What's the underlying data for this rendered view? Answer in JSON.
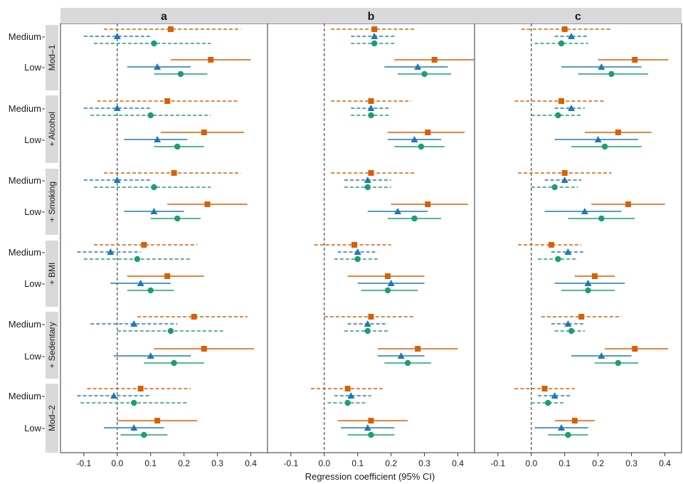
{
  "chart_data": {
    "type": "forest",
    "xlabel": "Regression coefficient (95% CI)",
    "xlim": [
      -0.17,
      0.45
    ],
    "xticks": [
      -0.1,
      0,
      0.1,
      0.2,
      0.3,
      0.4
    ],
    "xtick_labels": [
      "-0.1",
      "0.0",
      "0.1",
      "0.2",
      "0.3",
      "0.4"
    ],
    "reference_line": 0,
    "colors": {
      "square": "#d95f02",
      "triangle": "#1f78b4",
      "circle": "#1b9e77"
    },
    "facet_columns": [
      "a",
      "b",
      "c"
    ],
    "row_groups": [
      {
        "label": "Mod–1",
        "levels": [
          "Medium",
          "Low"
        ]
      },
      {
        "label": "+ Alcohol",
        "levels": [
          "Medium",
          "Low"
        ]
      },
      {
        "label": "+ Smoking",
        "levels": [
          "Medium",
          "Low"
        ]
      },
      {
        "label": "+ BMI",
        "levels": [
          "Medium",
          "Low"
        ]
      },
      {
        "label": "+ Sedentary",
        "levels": [
          "Medium",
          "Low"
        ]
      },
      {
        "label": "Mod–2",
        "levels": [
          "Medium",
          "Low"
        ]
      }
    ],
    "series_order": [
      "square",
      "triangle",
      "circle"
    ],
    "line_styles": {
      "Medium": "dashed",
      "Low": "solid"
    },
    "data": {
      "a": [
        [
          [
            [
              0.16,
              -0.04,
              0.37
            ],
            [
              0.0,
              -0.1,
              0.1
            ],
            [
              0.11,
              -0.07,
              0.28
            ]
          ],
          [
            [
              0.28,
              0.16,
              0.4
            ],
            [
              0.12,
              0.03,
              0.22
            ],
            [
              0.19,
              0.11,
              0.27
            ]
          ]
        ],
        [
          [
            [
              0.15,
              -0.06,
              0.36
            ],
            [
              0.0,
              -0.1,
              0.1
            ],
            [
              0.1,
              -0.08,
              0.28
            ]
          ],
          [
            [
              0.26,
              0.13,
              0.38
            ],
            [
              0.12,
              0.02,
              0.21
            ],
            [
              0.18,
              0.11,
              0.26
            ]
          ]
        ],
        [
          [
            [
              0.17,
              -0.04,
              0.37
            ],
            [
              0.0,
              -0.1,
              0.1
            ],
            [
              0.11,
              -0.07,
              0.28
            ]
          ],
          [
            [
              0.27,
              0.15,
              0.39
            ],
            [
              0.11,
              0.02,
              0.2
            ],
            [
              0.18,
              0.1,
              0.25
            ]
          ]
        ],
        [
          [
            [
              0.08,
              -0.07,
              0.24
            ],
            [
              -0.02,
              -0.12,
              0.07
            ],
            [
              0.06,
              -0.1,
              0.22
            ]
          ],
          [
            [
              0.15,
              0.03,
              0.26
            ],
            [
              0.07,
              -0.02,
              0.16
            ],
            [
              0.1,
              0.03,
              0.17
            ]
          ]
        ],
        [
          [
            [
              0.23,
              0.06,
              0.39
            ],
            [
              0.05,
              -0.08,
              0.18
            ],
            [
              0.16,
              0.0,
              0.32
            ]
          ],
          [
            [
              0.26,
              0.11,
              0.41
            ],
            [
              0.1,
              -0.01,
              0.22
            ],
            [
              0.17,
              0.08,
              0.26
            ]
          ]
        ],
        [
          [
            [
              0.07,
              -0.09,
              0.22
            ],
            [
              -0.01,
              -0.12,
              0.1
            ],
            [
              0.05,
              -0.11,
              0.21
            ]
          ],
          [
            [
              0.12,
              0.0,
              0.24
            ],
            [
              0.05,
              -0.04,
              0.14
            ],
            [
              0.08,
              0.01,
              0.15
            ]
          ]
        ]
      ],
      "b": [
        [
          [
            [
              0.15,
              0.02,
              0.27
            ],
            [
              0.15,
              0.08,
              0.21
            ],
            [
              0.15,
              0.08,
              0.21
            ]
          ],
          [
            [
              0.33,
              0.21,
              0.45
            ],
            [
              0.28,
              0.18,
              0.37
            ],
            [
              0.3,
              0.22,
              0.38
            ]
          ]
        ],
        [
          [
            [
              0.14,
              0.02,
              0.26
            ],
            [
              0.14,
              0.08,
              0.2
            ],
            [
              0.14,
              0.08,
              0.2
            ]
          ],
          [
            [
              0.31,
              0.19,
              0.42
            ],
            [
              0.27,
              0.19,
              0.35
            ],
            [
              0.29,
              0.21,
              0.36
            ]
          ]
        ],
        [
          [
            [
              0.14,
              0.02,
              0.27
            ],
            [
              0.13,
              0.06,
              0.2
            ],
            [
              0.13,
              0.06,
              0.2
            ]
          ],
          [
            [
              0.31,
              0.2,
              0.43
            ],
            [
              0.22,
              0.13,
              0.31
            ],
            [
              0.27,
              0.19,
              0.35
            ]
          ]
        ],
        [
          [
            [
              0.09,
              -0.03,
              0.2
            ],
            [
              0.1,
              0.04,
              0.16
            ],
            [
              0.1,
              0.03,
              0.16
            ]
          ],
          [
            [
              0.19,
              0.07,
              0.3
            ],
            [
              0.2,
              0.1,
              0.3
            ],
            [
              0.19,
              0.11,
              0.28
            ]
          ]
        ],
        [
          [
            [
              0.14,
              0.0,
              0.27
            ],
            [
              0.13,
              0.07,
              0.19
            ],
            [
              0.13,
              0.06,
              0.19
            ]
          ],
          [
            [
              0.28,
              0.16,
              0.4
            ],
            [
              0.23,
              0.16,
              0.3
            ],
            [
              0.25,
              0.18,
              0.32
            ]
          ]
        ],
        [
          [
            [
              0.07,
              -0.04,
              0.18
            ],
            [
              0.08,
              0.03,
              0.14
            ],
            [
              0.07,
              0.01,
              0.13
            ]
          ],
          [
            [
              0.14,
              0.04,
              0.25
            ],
            [
              0.13,
              0.05,
              0.21
            ],
            [
              0.14,
              0.07,
              0.21
            ]
          ]
        ]
      ],
      "c": [
        [
          [
            [
              0.1,
              -0.03,
              0.24
            ],
            [
              0.12,
              0.07,
              0.17
            ],
            [
              0.09,
              0.01,
              0.17
            ]
          ],
          [
            [
              0.31,
              0.2,
              0.41
            ],
            [
              0.21,
              0.09,
              0.33
            ],
            [
              0.24,
              0.14,
              0.35
            ]
          ]
        ],
        [
          [
            [
              0.09,
              -0.05,
              0.22
            ],
            [
              0.12,
              0.07,
              0.16
            ],
            [
              0.08,
              0.0,
              0.15
            ]
          ],
          [
            [
              0.26,
              0.16,
              0.36
            ],
            [
              0.2,
              0.07,
              0.32
            ],
            [
              0.22,
              0.12,
              0.33
            ]
          ]
        ],
        [
          [
            [
              0.1,
              -0.04,
              0.24
            ],
            [
              0.1,
              0.04,
              0.15
            ],
            [
              0.07,
              0.0,
              0.14
            ]
          ],
          [
            [
              0.29,
              0.18,
              0.4
            ],
            [
              0.16,
              0.04,
              0.27
            ],
            [
              0.21,
              0.11,
              0.31
            ]
          ]
        ],
        [
          [
            [
              0.06,
              -0.04,
              0.15
            ],
            [
              0.11,
              0.06,
              0.16
            ],
            [
              0.08,
              0.02,
              0.14
            ]
          ],
          [
            [
              0.19,
              0.13,
              0.25
            ],
            [
              0.17,
              0.07,
              0.28
            ],
            [
              0.17,
              0.09,
              0.25
            ]
          ]
        ],
        [
          [
            [
              0.15,
              0.03,
              0.27
            ],
            [
              0.11,
              0.06,
              0.16
            ],
            [
              0.12,
              0.07,
              0.16
            ]
          ],
          [
            [
              0.31,
              0.22,
              0.41
            ],
            [
              0.21,
              0.12,
              0.3
            ],
            [
              0.26,
              0.19,
              0.32
            ]
          ]
        ],
        [
          [
            [
              0.04,
              -0.05,
              0.13
            ],
            [
              0.07,
              0.02,
              0.12
            ],
            [
              0.05,
              0.0,
              0.1
            ]
          ],
          [
            [
              0.13,
              0.07,
              0.19
            ],
            [
              0.09,
              0.01,
              0.17
            ],
            [
              0.11,
              0.05,
              0.17
            ]
          ]
        ]
      ]
    }
  }
}
